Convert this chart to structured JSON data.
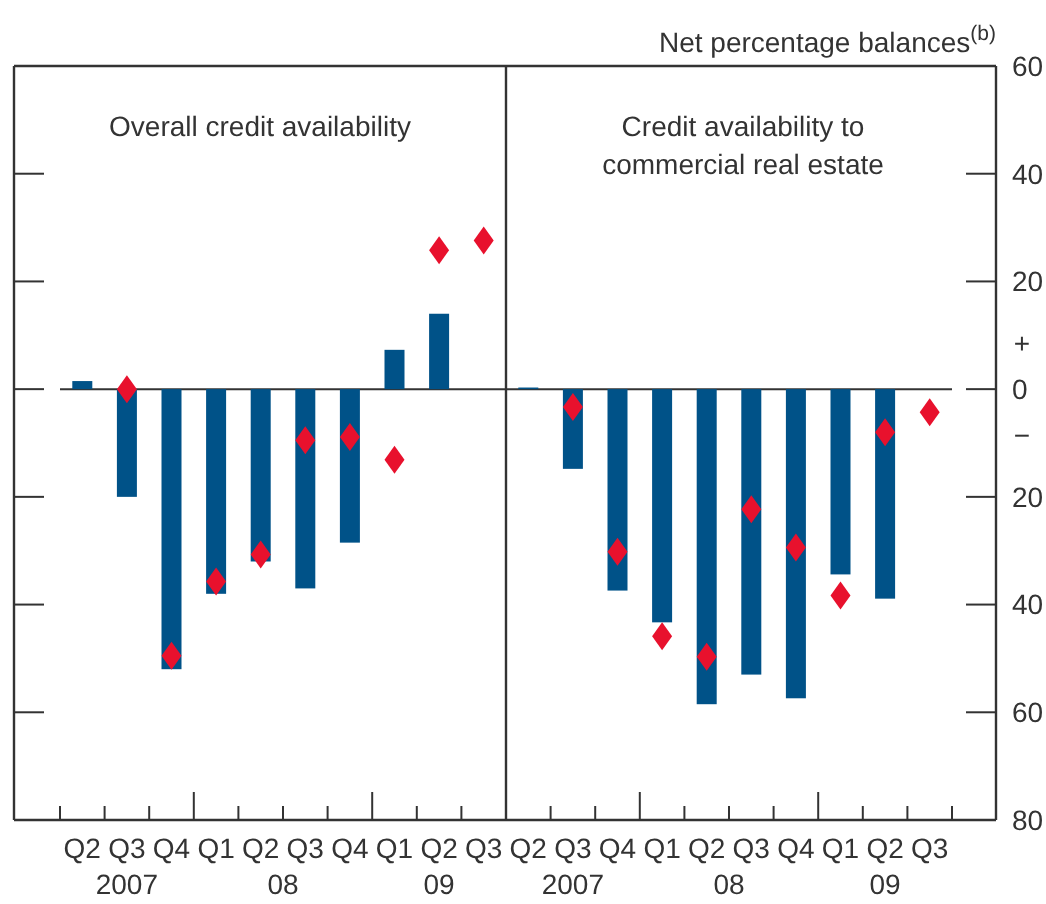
{
  "chart_data": [
    {
      "type": "bar",
      "title": "Overall credit availability",
      "categories": [
        "Q2",
        "Q3",
        "Q4",
        "Q1",
        "Q2",
        "Q3",
        "Q4",
        "Q1",
        "Q2",
        "Q3"
      ],
      "series": [
        {
          "color": "#005288",
          "values": [
            1.5,
            -20,
            -52,
            -38,
            -32,
            -37,
            -28.5,
            7.3,
            14,
            null
          ]
        },
        {
          "type": "scatter",
          "color": "#e8112d",
          "marker": "diamond",
          "values": [
            null,
            0,
            -49.5,
            -35.7,
            -30.7,
            -9.5,
            -8.9,
            -13.1,
            25.8,
            27.6
          ]
        }
      ],
      "ylim": [
        -80,
        60
      ],
      "yticks": [
        {
          "value": 60,
          "label": null
        },
        {
          "value": 40,
          "label": null
        },
        {
          "value": 20,
          "label": null
        },
        {
          "value": 0,
          "label": null
        },
        {
          "value": -20,
          "label": null
        },
        {
          "value": -40,
          "label": null
        },
        {
          "value": -60,
          "label": null
        },
        {
          "value": -80,
          "label": null
        }
      ],
      "tick_labels": "x",
      "annotations": [
        "2007",
        "08",
        "09"
      ]
    },
    {
      "type": "bar",
      "title": "Credit availability to commercial real estate",
      "ylabel": "Net percentage balances$^{(b)}$",
      "categories": [
        "Q2",
        "Q3",
        "Q4",
        "Q1",
        "Q2",
        "Q3",
        "Q4",
        "Q1",
        "Q2",
        "Q3"
      ],
      "series": [
        {
          "color": "#005288",
          "values": [
            0.3,
            -14.8,
            -37.4,
            -43.3,
            -58.5,
            -53,
            -57.4,
            -34.4,
            -38.9,
            null
          ]
        },
        {
          "type": "scatter",
          "color": "#e8112d",
          "marker": "diamond",
          "values": [
            null,
            -3.3,
            -30.2,
            -45.9,
            -49.7,
            -22.3,
            -29.4,
            -38.3,
            -8,
            -4.3
          ]
        }
      ],
      "ylim": [
        -80,
        60
      ],
      "yticks": [
        60,
        40,
        20,
        0,
        {
          "value": -20,
          "label": "20"
        },
        {
          "value": -40,
          "label": "40"
        },
        {
          "value": -60,
          "label": "60"
        },
        {
          "value": -80,
          "label": "80"
        }
      ],
      "annotations": [
        "2007",
        "08",
        "09",
        "+",
        "−"
      ]
    }
  ]
}
